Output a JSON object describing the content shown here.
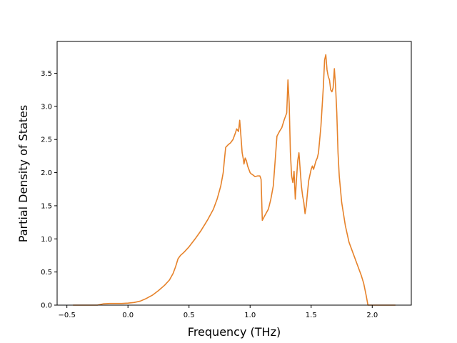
{
  "chart_data": {
    "type": "line",
    "xlabel": "Frequency (THz)",
    "ylabel": "Partial Density of States",
    "xlim": [
      -0.58,
      2.32
    ],
    "ylim": [
      0.0,
      3.98
    ],
    "grid": false,
    "xticks": [
      {
        "value": -0.5,
        "label": "−0.5"
      },
      {
        "value": 0.0,
        "label": "0.0"
      },
      {
        "value": 0.5,
        "label": "0.5"
      },
      {
        "value": 1.0,
        "label": "1.0"
      },
      {
        "value": 1.5,
        "label": "1.5"
      },
      {
        "value": 2.0,
        "label": "2.0"
      }
    ],
    "yticks": [
      {
        "value": 0.0,
        "label": "0.0"
      },
      {
        "value": 0.5,
        "label": "0.5"
      },
      {
        "value": 1.0,
        "label": "1.0"
      },
      {
        "value": 1.5,
        "label": "1.5"
      },
      {
        "value": 2.0,
        "label": "2.0"
      },
      {
        "value": 2.5,
        "label": "2.5"
      },
      {
        "value": 3.0,
        "label": "3.0"
      },
      {
        "value": 3.5,
        "label": "3.5"
      }
    ],
    "series": [
      {
        "color": "#e6822a",
        "points": [
          [
            -0.45,
            0.0
          ],
          [
            -0.25,
            0.0
          ],
          [
            -0.2,
            0.02
          ],
          [
            -0.15,
            0.025
          ],
          [
            -0.05,
            0.025
          ],
          [
            0.0,
            0.03
          ],
          [
            0.05,
            0.04
          ],
          [
            0.1,
            0.06
          ],
          [
            0.15,
            0.1
          ],
          [
            0.2,
            0.15
          ],
          [
            0.25,
            0.22
          ],
          [
            0.3,
            0.3
          ],
          [
            0.34,
            0.38
          ],
          [
            0.37,
            0.48
          ],
          [
            0.39,
            0.58
          ],
          [
            0.41,
            0.7
          ],
          [
            0.43,
            0.75
          ],
          [
            0.46,
            0.8
          ],
          [
            0.5,
            0.88
          ],
          [
            0.55,
            1.0
          ],
          [
            0.6,
            1.13
          ],
          [
            0.65,
            1.28
          ],
          [
            0.7,
            1.45
          ],
          [
            0.73,
            1.6
          ],
          [
            0.76,
            1.8
          ],
          [
            0.78,
            2.0
          ],
          [
            0.79,
            2.2
          ],
          [
            0.8,
            2.38
          ],
          [
            0.82,
            2.42
          ],
          [
            0.84,
            2.45
          ],
          [
            0.86,
            2.5
          ],
          [
            0.88,
            2.6
          ],
          [
            0.89,
            2.66
          ],
          [
            0.905,
            2.62
          ],
          [
            0.915,
            2.79
          ],
          [
            0.925,
            2.55
          ],
          [
            0.935,
            2.3
          ],
          [
            0.945,
            2.2
          ],
          [
            0.95,
            2.13
          ],
          [
            0.96,
            2.22
          ],
          [
            0.97,
            2.18
          ],
          [
            0.98,
            2.1
          ],
          [
            0.99,
            2.05
          ],
          [
            1.0,
            2.0
          ],
          [
            1.01,
            1.98
          ],
          [
            1.02,
            1.97
          ],
          [
            1.04,
            1.94
          ],
          [
            1.06,
            1.95
          ],
          [
            1.08,
            1.95
          ],
          [
            1.09,
            1.9
          ],
          [
            1.1,
            1.28
          ],
          [
            1.12,
            1.35
          ],
          [
            1.15,
            1.45
          ],
          [
            1.17,
            1.6
          ],
          [
            1.19,
            1.8
          ],
          [
            1.21,
            2.3
          ],
          [
            1.22,
            2.55
          ],
          [
            1.24,
            2.62
          ],
          [
            1.26,
            2.68
          ],
          [
            1.28,
            2.8
          ],
          [
            1.3,
            2.9
          ],
          [
            1.31,
            3.4
          ],
          [
            1.32,
            3.05
          ],
          [
            1.33,
            2.3
          ],
          [
            1.34,
            1.95
          ],
          [
            1.35,
            1.85
          ],
          [
            1.36,
            2.02
          ],
          [
            1.37,
            1.6
          ],
          [
            1.38,
            1.9
          ],
          [
            1.39,
            2.18
          ],
          [
            1.4,
            2.3
          ],
          [
            1.41,
            2.05
          ],
          [
            1.42,
            1.8
          ],
          [
            1.43,
            1.65
          ],
          [
            1.44,
            1.55
          ],
          [
            1.45,
            1.38
          ],
          [
            1.46,
            1.5
          ],
          [
            1.47,
            1.7
          ],
          [
            1.48,
            1.88
          ],
          [
            1.5,
            2.05
          ],
          [
            1.51,
            2.1
          ],
          [
            1.52,
            2.05
          ],
          [
            1.54,
            2.18
          ],
          [
            1.55,
            2.22
          ],
          [
            1.56,
            2.3
          ],
          [
            1.58,
            2.7
          ],
          [
            1.6,
            3.3
          ],
          [
            1.61,
            3.7
          ],
          [
            1.62,
            3.78
          ],
          [
            1.63,
            3.55
          ],
          [
            1.64,
            3.45
          ],
          [
            1.65,
            3.4
          ],
          [
            1.66,
            3.25
          ],
          [
            1.67,
            3.22
          ],
          [
            1.68,
            3.28
          ],
          [
            1.69,
            3.57
          ],
          [
            1.7,
            3.3
          ],
          [
            1.71,
            2.9
          ],
          [
            1.72,
            2.3
          ],
          [
            1.73,
            1.95
          ],
          [
            1.75,
            1.55
          ],
          [
            1.78,
            1.2
          ],
          [
            1.81,
            0.95
          ],
          [
            1.85,
            0.75
          ],
          [
            1.88,
            0.6
          ],
          [
            1.91,
            0.45
          ],
          [
            1.93,
            0.33
          ],
          [
            1.95,
            0.15
          ],
          [
            1.965,
            0.0
          ],
          [
            2.0,
            0.0
          ],
          [
            2.1,
            0.0
          ],
          [
            2.19,
            0.0
          ]
        ]
      }
    ]
  }
}
